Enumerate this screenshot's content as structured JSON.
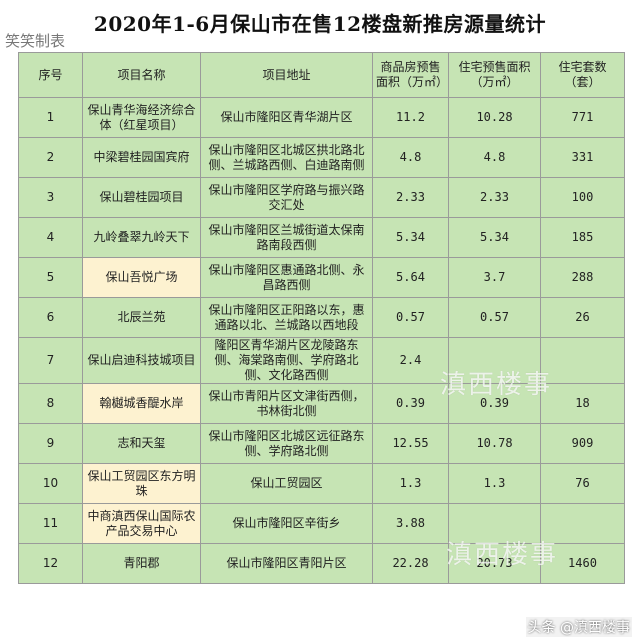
{
  "title": "2020年1-6月保山市在售12楼盘新推房源量统计",
  "maker": "笑笑制表",
  "headers": [
    "序号",
    "项目名称",
    "项目地址",
    "商品房预售面积（万㎡）",
    "住宅预售面积（万㎡）",
    "住宅套数（套）"
  ],
  "rows": [
    {
      "no": "1",
      "name": "保山青华海经济综合体（红星项目）",
      "address": "保山市隆阳区青华湖片区",
      "area": "11.2",
      "res_area": "10.28",
      "units": "771"
    },
    {
      "no": "2",
      "name": "中梁碧桂园国宾府",
      "address": "保山市隆阳区北城区拱北路北侧、兰城路西侧、白迪路南侧",
      "area": "4.8",
      "res_area": "4.8",
      "units": "331"
    },
    {
      "no": "3",
      "name": "保山碧桂园项目",
      "address": "保山市隆阳区学府路与振兴路交汇处",
      "area": "2.33",
      "res_area": "2.33",
      "units": "100"
    },
    {
      "no": "4",
      "name": "九岭叠翠九岭天下",
      "address": "保山市隆阳区兰城街道太保南路南段西侧",
      "area": "5.34",
      "res_area": "5.34",
      "units": "185"
    },
    {
      "no": "5",
      "name": "保山吾悦广场",
      "address": "保山市隆阳区惠通路北侧、永昌路西侧",
      "area": "5.64",
      "res_area": "3.7",
      "units": "288"
    },
    {
      "no": "6",
      "name": "北辰兰苑",
      "address": "保山市隆阳区正阳路以东，惠通路以北、兰城路以西地段",
      "area": "0.57",
      "res_area": "0.57",
      "units": "26"
    },
    {
      "no": "7",
      "name": "保山启迪科技城项目",
      "address": "隆阳区青华湖片区龙陵路东侧、海棠路南侧、学府路北侧、文化路西侧",
      "area": "2.4",
      "res_area": "",
      "units": ""
    },
    {
      "no": "8",
      "name": "翰樾城香醍水岸",
      "address": "保山市青阳片区文津街西侧，书林街北侧",
      "area": "0.39",
      "res_area": "0.39",
      "units": "18"
    },
    {
      "no": "9",
      "name": "志和天玺",
      "address": "保山市隆阳区北城区远征路东侧、学府路北侧",
      "area": "12.55",
      "res_area": "10.78",
      "units": "909"
    },
    {
      "no": "10",
      "name": "保山工贸园区东方明珠",
      "address": "保山工贸园区",
      "area": "1.3",
      "res_area": "1.3",
      "units": "76"
    },
    {
      "no": "11",
      "name": "中商滇西保山国际农产品交易中心",
      "address": "保山市隆阳区辛街乡",
      "area": "3.88",
      "res_area": "",
      "units": ""
    },
    {
      "no": "12",
      "name": "青阳郡",
      "address": "保山市隆阳区青阳片区",
      "area": "22.28",
      "res_area": "20.73",
      "units": "1460"
    }
  ],
  "highlight_color": "#fdf2d0",
  "table_color": "#c6e4b4",
  "watermark": "滇西楼事",
  "footer": "头条 @滇西楼事"
}
